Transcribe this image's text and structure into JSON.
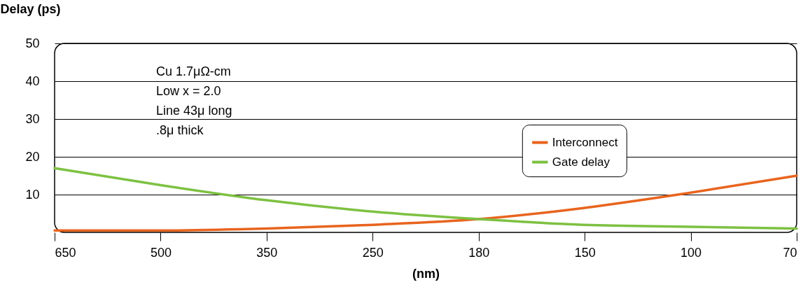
{
  "chart_data": {
    "type": "line",
    "ylabel": "Delay (ps)",
    "xlabel": "(nm)",
    "categories": [
      "650",
      "500",
      "350",
      "250",
      "180",
      "150",
      "100",
      "70"
    ],
    "series": [
      {
        "name": "Interconnect",
        "color": "#e8641e",
        "values": [
          0.5,
          0.5,
          1,
          2,
          3.5,
          6.5,
          10.5,
          15
        ]
      },
      {
        "name": "Gate delay",
        "color": "#7dc142",
        "values": [
          17,
          12.5,
          8.5,
          5.5,
          3.5,
          2,
          1.5,
          1
        ]
      }
    ],
    "ylim": [
      0,
      50
    ],
    "yticks": [
      10,
      20,
      30,
      40,
      50
    ],
    "grid": "y",
    "legend": "right",
    "marker": "none",
    "line_style": "solid",
    "annotations": [
      "Cu 1.7μΩ-cm",
      "Low x = 2.0",
      "Line 43μ long",
      "    .8μ thick"
    ]
  }
}
